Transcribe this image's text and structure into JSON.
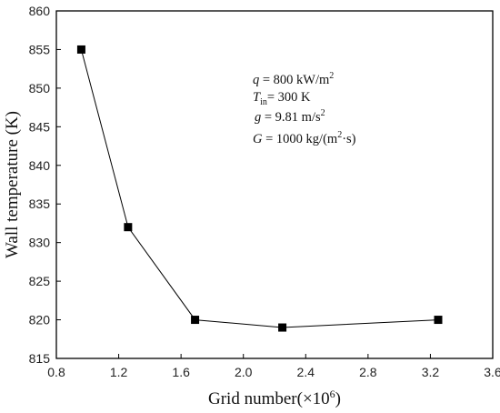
{
  "chart_data": {
    "type": "line",
    "xlabel": "Grid number(×10⁶)",
    "ylabel": "Wall temperature (K)",
    "xlim": [
      0.8,
      3.6
    ],
    "ylim": [
      815,
      860
    ],
    "xticks": [
      "0.8",
      "1.2",
      "1.6",
      "2.0",
      "2.4",
      "2.8",
      "3.2",
      "3.6"
    ],
    "yticks": [
      "815",
      "820",
      "825",
      "830",
      "835",
      "840",
      "845",
      "850",
      "855",
      "860"
    ],
    "grid": false,
    "marker": "square",
    "series": [
      {
        "x": [
          0.96,
          1.26,
          1.69,
          2.25,
          3.25
        ],
        "y": [
          855,
          832,
          820,
          819,
          820
        ]
      }
    ],
    "annotations": [
      "q = 800 kW/m²",
      "Tin= 300 K",
      "g = 9.81 m/s²",
      "G = 1000 kg/(m²·s)"
    ]
  }
}
